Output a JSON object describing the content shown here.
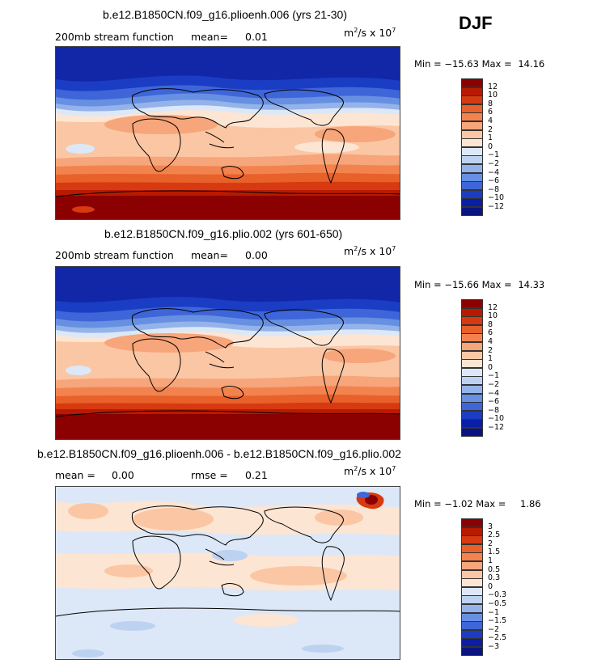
{
  "season": "DJF",
  "panels": [
    {
      "title": "b.e12.B1850CN.f09_g16.plioenh.006 (yrs 21-30)",
      "left_label": "200mb stream function",
      "mean_label": "mean=",
      "mean_value": "0.01",
      "units_base": "m",
      "units_exp1": "2",
      "units_mid": "/s x 10",
      "units_exp2": "7",
      "min_label": "Min =",
      "min_value": "−15.63",
      "max_label": "Max =",
      "max_value": "14.16",
      "colorbar_labels": [
        "12",
        "10",
        "8",
        "6",
        "4",
        "2",
        "1",
        "0",
        "−1",
        "−2",
        "−4",
        "−6",
        "−8",
        "−10",
        "−12"
      ]
    },
    {
      "title": "b.e12.B1850CN.f09_g16.plio.002 (yrs 601-650)",
      "left_label": "200mb stream function",
      "mean_label": "mean=",
      "mean_value": "0.00",
      "units_base": "m",
      "units_exp1": "2",
      "units_mid": "/s x 10",
      "units_exp2": "7",
      "min_label": "Min =",
      "min_value": "−15.66",
      "max_label": "Max =",
      "max_value": "14.33",
      "colorbar_labels": [
        "12",
        "10",
        "8",
        "6",
        "4",
        "2",
        "1",
        "0",
        "−1",
        "−2",
        "−4",
        "−6",
        "−8",
        "−10",
        "−12"
      ]
    },
    {
      "title": "b.e12.B1850CN.f09_g16.plioenh.006 - b.e12.B1850CN.f09_g16.plio.002",
      "mean_label": "mean =",
      "mean_value": "0.00",
      "rmse_label": "rmse =",
      "rmse_value": "0.21",
      "units_base": "m",
      "units_exp1": "2",
      "units_mid": "/s x 10",
      "units_exp2": "7",
      "min_label": "Min =",
      "min_value": "−1.02",
      "max_label": "Max =",
      "max_value": "1.86",
      "colorbar_labels": [
        "3",
        "2.5",
        "2",
        "1.5",
        "1",
        "0.5",
        "0.3",
        "0",
        "−0.3",
        "−0.5",
        "−1",
        "−1.5",
        "−2",
        "−2.5",
        "−3"
      ]
    }
  ],
  "colors": {
    "scale": [
      "#8b0000",
      "#b81a00",
      "#d73a10",
      "#e8602a",
      "#f2834e",
      "#f7a57a",
      "#fbc6a4",
      "#fde5d3",
      "#dce8f7",
      "#bdd1f1",
      "#94b3ea",
      "#6890e2",
      "#3f66d8",
      "#1b3dc4",
      "#0a1ea6",
      "#0a1480"
    ],
    "coast": "#000000"
  }
}
